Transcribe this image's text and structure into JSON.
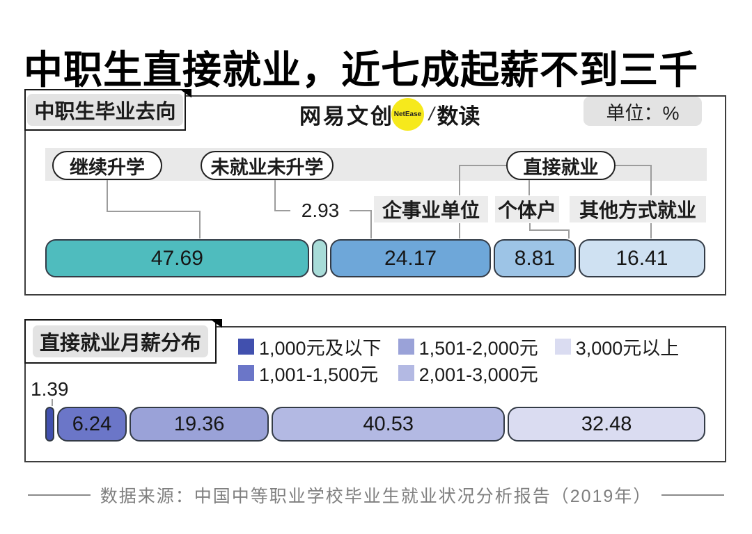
{
  "title": "中职生直接就业，近七成起薪不到三千",
  "brand": {
    "name": "网易文创",
    "badge": "NetEase",
    "divider": "/",
    "sub": "数读",
    "badge_color": "#f6e91c"
  },
  "panel1": {
    "tab": "中职生毕业去向",
    "unit_label": "单位：%",
    "pills": [
      "继续升学",
      "未就业未升学",
      "直接就业"
    ],
    "sub_labels": [
      "企事业单位",
      "个体户",
      "其他方式就业"
    ],
    "callout_value": "2.93"
  },
  "panel2": {
    "tab": "直接就业月薪分布",
    "callout_value": "1.39"
  },
  "footer": "数据来源：中国中等职业学校毕业生就业状况分析报告（2019年）",
  "chart_data": [
    {
      "type": "bar",
      "stacked": true,
      "orientation": "horizontal",
      "title": "中职生毕业去向",
      "unit": "%",
      "categories": [
        "继续升学",
        "未就业未升学",
        "直接就业-企事业单位",
        "直接就业-个体户",
        "直接就业-其他方式就业"
      ],
      "values": [
        47.69,
        2.93,
        24.17,
        8.81,
        16.41
      ],
      "colors": [
        "#4fbcbe",
        "#a8dcd8",
        "#6ea7d9",
        "#9dc4e6",
        "#cfe1f2"
      ],
      "inside_labels": [
        "47.69",
        "",
        "24.17",
        "8.81",
        "16.41"
      ],
      "xlim": [
        0,
        100
      ],
      "legend": false
    },
    {
      "type": "bar",
      "stacked": true,
      "orientation": "horizontal",
      "title": "直接就业月薪分布",
      "unit": "%",
      "categories": [
        "1,000元及以下",
        "1,001-1,500元",
        "1,501-2,000元",
        "2,001-3,000元",
        "3,000元以上"
      ],
      "values": [
        1.39,
        6.24,
        19.36,
        40.53,
        32.48
      ],
      "colors": [
        "#4150ae",
        "#6b76c8",
        "#9aa2d8",
        "#b3b9e3",
        "#dadcf1"
      ],
      "inside_labels": [
        "",
        "6.24",
        "19.36",
        "40.53",
        "32.48"
      ],
      "xlim": [
        0,
        100
      ],
      "legend": true,
      "legend_position": "top"
    }
  ]
}
